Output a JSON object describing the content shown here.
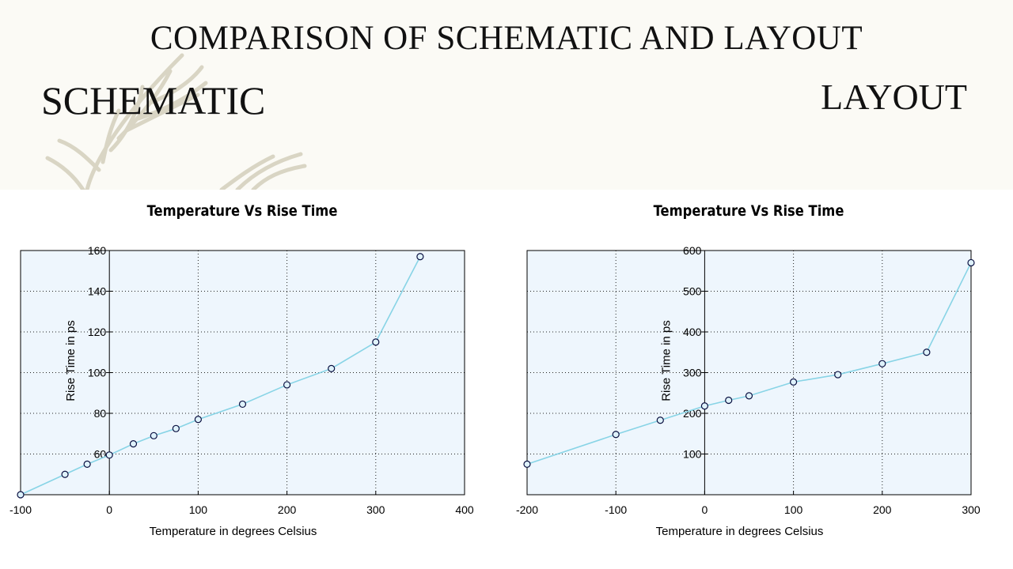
{
  "slide": {
    "title": "COMPARISON OF SCHEMATIC AND LAYOUT",
    "left_heading": "SCHEMATIC",
    "right_heading": "LAYOUT"
  },
  "chart_data": [
    {
      "type": "line",
      "title": "Temperature Vs Rise Time",
      "xlabel": "Temperature in degrees Celsius",
      "ylabel": "Rise Time in ps",
      "xlim": [
        -100,
        400
      ],
      "ylim": [
        40,
        160
      ],
      "xticks": [
        -100,
        0,
        100,
        200,
        300,
        400
      ],
      "yticks": [
        60,
        80,
        100,
        120,
        140,
        160
      ],
      "grid": true,
      "line_color": "#88d4e6",
      "background": "#eef6fd",
      "x": [
        -100,
        -50,
        -25,
        0,
        27,
        50,
        75,
        100,
        150,
        200,
        250,
        300,
        350
      ],
      "y": [
        40,
        50,
        55,
        59.5,
        65,
        69,
        72.5,
        77,
        84.5,
        94,
        102,
        115,
        157
      ]
    },
    {
      "type": "line",
      "title": "Temperature Vs Rise Time",
      "xlabel": "Temperature in degrees Celsius",
      "ylabel": "Rise Time in ps",
      "xlim": [
        -200,
        300
      ],
      "ylim": [
        0,
        600
      ],
      "xticks": [
        -200,
        -100,
        0,
        100,
        200,
        300
      ],
      "yticks": [
        100,
        200,
        300,
        400,
        500,
        600
      ],
      "grid": true,
      "line_color": "#88d4e6",
      "background": "#eef6fd",
      "x": [
        -200,
        -100,
        -50,
        0,
        27,
        50,
        100,
        150,
        200,
        250,
        300
      ],
      "y": [
        75,
        148,
        183,
        218,
        232,
        243,
        277,
        295,
        322,
        350,
        570
      ]
    }
  ]
}
